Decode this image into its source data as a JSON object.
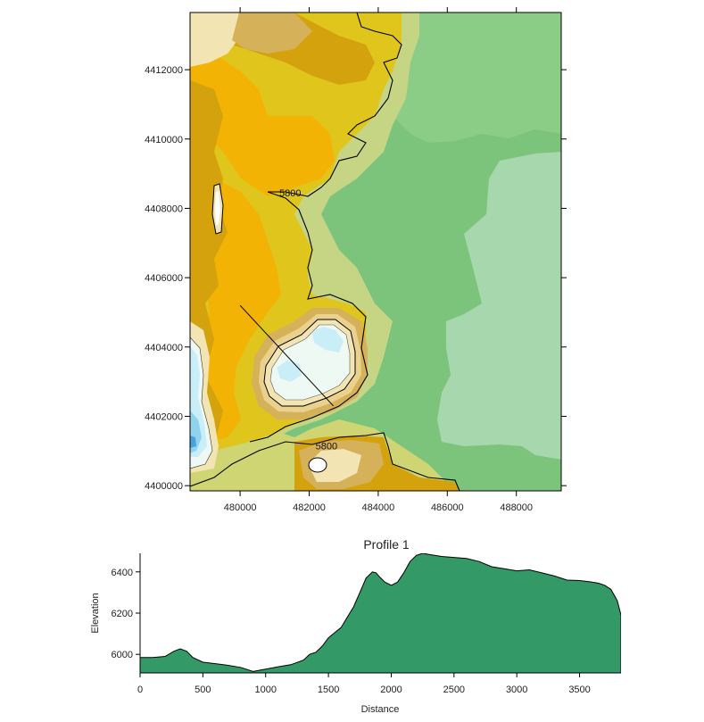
{
  "colors": {
    "background": "#ffffff",
    "profile_fill": "#339966",
    "profile_line": "#000000",
    "map_levels": [
      "#4aa3d6",
      "#8fd3ee",
      "#c9eef7",
      "#eef9f3",
      "#f2e5b3",
      "#ead28e",
      "#d5b25a",
      "#d4a20c",
      "#f2b304",
      "#e0c61c",
      "#cfd572",
      "#c5d583",
      "#8bcc86",
      "#7cc47c",
      "#a6d7ad"
    ]
  },
  "chart_data": [
    {
      "type": "contour-map",
      "x_ticks": [
        480000,
        482000,
        484000,
        486000,
        488000
      ],
      "y_ticks": [
        4400000,
        4402000,
        4404000,
        4406000,
        4408000,
        4410000,
        4412000
      ],
      "xlim": [
        478550,
        489300
      ],
      "ylim": [
        4399850,
        4413650
      ],
      "contour_labels": [
        {
          "text": "5800",
          "x": 481450,
          "y": 4408450
        },
        {
          "text": "5800",
          "x": 482500,
          "y": 4401150
        }
      ],
      "profile_line": {
        "x": [
          480000,
          482700
        ],
        "y": [
          4405200,
          4402300
        ]
      }
    },
    {
      "type": "area",
      "title": "Profile 1",
      "xlabel": "Distance",
      "ylabel": "Elevation",
      "xlim": [
        0,
        3830
      ],
      "ylim": [
        5910,
        6490
      ],
      "x_ticks": [
        0,
        500,
        1000,
        1500,
        2000,
        2500,
        3000,
        3500
      ],
      "y_ticks": [
        6000,
        6200,
        6400
      ],
      "x": [
        0,
        100,
        200,
        270,
        320,
        370,
        420,
        500,
        600,
        700,
        800,
        900,
        1000,
        1100,
        1200,
        1300,
        1350,
        1400,
        1450,
        1500,
        1550,
        1600,
        1650,
        1700,
        1750,
        1800,
        1850,
        1880,
        1900,
        1950,
        2000,
        2050,
        2100,
        2150,
        2200,
        2250,
        2300,
        2400,
        2500,
        2600,
        2700,
        2800,
        2900,
        3000,
        3100,
        3200,
        3300,
        3400,
        3500,
        3600,
        3650,
        3700,
        3750,
        3800,
        3830
      ],
      "y": [
        5985,
        5985,
        5990,
        6015,
        6027,
        6015,
        5985,
        5962,
        5955,
        5947,
        5937,
        5917,
        5928,
        5940,
        5950,
        5972,
        6000,
        6010,
        6040,
        6080,
        6105,
        6130,
        6180,
        6230,
        6300,
        6370,
        6400,
        6395,
        6380,
        6350,
        6335,
        6350,
        6395,
        6450,
        6480,
        6490,
        6485,
        6475,
        6470,
        6465,
        6450,
        6425,
        6415,
        6405,
        6410,
        6395,
        6380,
        6360,
        6358,
        6350,
        6345,
        6335,
        6315,
        6260,
        6190
      ]
    }
  ]
}
